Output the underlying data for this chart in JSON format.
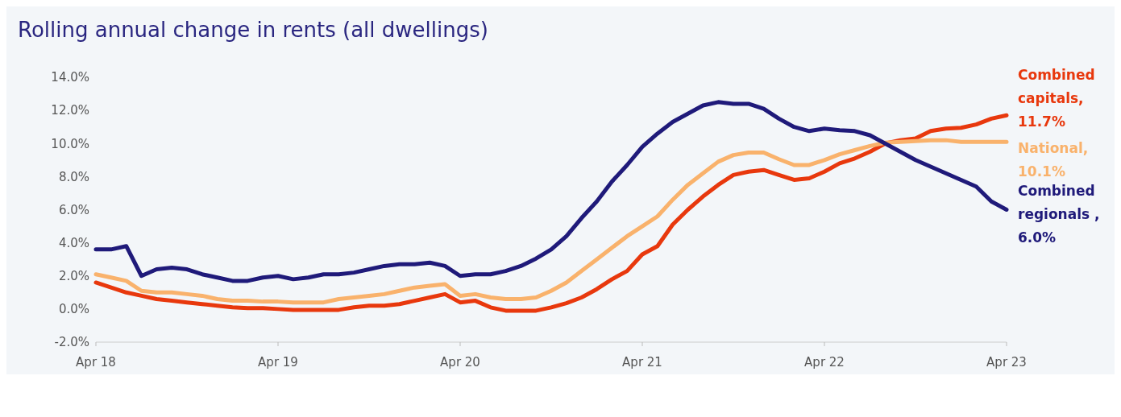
{
  "chart_data": {
    "type": "line",
    "title": "Rolling annual change in rents (all dwellings)",
    "categories": [
      "Apr 18",
      null,
      null,
      null,
      null,
      null,
      null,
      null,
      null,
      null,
      null,
      null,
      "Apr 19",
      null,
      null,
      null,
      null,
      null,
      null,
      null,
      null,
      null,
      null,
      null,
      "Apr 20",
      null,
      null,
      null,
      null,
      null,
      null,
      null,
      null,
      null,
      null,
      null,
      "Apr 21",
      null,
      null,
      null,
      null,
      null,
      null,
      null,
      null,
      null,
      null,
      null,
      "Apr 22",
      null,
      null,
      null,
      null,
      null,
      null,
      null,
      null,
      null,
      null,
      null,
      "Apr 23"
    ],
    "series": [
      {
        "name": "Combined capitals,",
        "color": "#e8380d",
        "values": [
          1.6,
          1.3,
          1.0,
          0.8,
          0.6,
          0.5,
          0.4,
          0.3,
          0.2,
          0.1,
          0.05,
          0.05,
          0.0,
          -0.05,
          -0.05,
          -0.05,
          -0.05,
          0.1,
          0.2,
          0.2,
          0.3,
          0.5,
          0.7,
          0.9,
          0.4,
          0.5,
          0.1,
          -0.1,
          -0.1,
          -0.1,
          0.1,
          0.35,
          0.7,
          1.2,
          1.8,
          2.3,
          3.3,
          3.8,
          5.1,
          6.0,
          6.8,
          7.5,
          8.1,
          8.3,
          8.4,
          8.1,
          7.8,
          7.9,
          8.3,
          8.8,
          9.1,
          9.5,
          10.0,
          10.2,
          10.3,
          10.75,
          10.9,
          10.95,
          11.15,
          11.5,
          11.7
        ],
        "value_labels": [
          null,
          null,
          null,
          null,
          null,
          null,
          null,
          null,
          null,
          null,
          null,
          null,
          null,
          null,
          null,
          null,
          null,
          null,
          null,
          null,
          null,
          null,
          null,
          null,
          null,
          null,
          null,
          null,
          null,
          null,
          null,
          null,
          null,
          null,
          null,
          null,
          null,
          null,
          null,
          null,
          null,
          null,
          null,
          null,
          null,
          null,
          null,
          null,
          null,
          null,
          null,
          null,
          null,
          null,
          null,
          null,
          null,
          null,
          null,
          null,
          "11.7%"
        ]
      },
      {
        "name": "National,",
        "color": "#f9b26c",
        "values": [
          2.1,
          1.9,
          1.7,
          1.1,
          1.0,
          1.0,
          0.9,
          0.8,
          0.6,
          0.5,
          0.5,
          0.45,
          0.45,
          0.4,
          0.4,
          0.4,
          0.6,
          0.7,
          0.8,
          0.9,
          1.1,
          1.3,
          1.4,
          1.5,
          0.8,
          0.9,
          0.7,
          0.6,
          0.6,
          0.7,
          1.1,
          1.6,
          2.3,
          3.0,
          3.7,
          4.4,
          5.0,
          5.6,
          6.6,
          7.5,
          8.2,
          8.9,
          9.3,
          9.45,
          9.45,
          9.05,
          8.7,
          8.7,
          9.0,
          9.35,
          9.6,
          9.85,
          10.05,
          10.1,
          10.15,
          10.2,
          10.2,
          10.1,
          10.1,
          10.1,
          10.1
        ],
        "value_labels": [
          null,
          null,
          null,
          null,
          null,
          null,
          null,
          null,
          null,
          null,
          null,
          null,
          null,
          null,
          null,
          null,
          null,
          null,
          null,
          null,
          null,
          null,
          null,
          null,
          null,
          null,
          null,
          null,
          null,
          null,
          null,
          null,
          null,
          null,
          null,
          null,
          null,
          null,
          null,
          null,
          null,
          null,
          null,
          null,
          null,
          null,
          null,
          null,
          null,
          null,
          null,
          null,
          null,
          null,
          null,
          null,
          null,
          null,
          null,
          null,
          "10.1%"
        ]
      },
      {
        "name": "Combined regionals ,",
        "color": "#1f1a7a",
        "values": [
          3.6,
          3.6,
          3.8,
          2.0,
          2.4,
          2.5,
          2.4,
          2.1,
          1.9,
          1.7,
          1.7,
          1.9,
          2.0,
          1.8,
          1.9,
          2.1,
          2.1,
          2.2,
          2.4,
          2.6,
          2.7,
          2.7,
          2.8,
          2.6,
          2.0,
          2.1,
          2.1,
          2.3,
          2.6,
          3.05,
          3.6,
          4.4,
          5.5,
          6.5,
          7.7,
          8.7,
          9.8,
          10.6,
          11.3,
          11.8,
          12.3,
          12.5,
          12.4,
          12.4,
          12.1,
          11.5,
          11.0,
          10.75,
          10.9,
          10.8,
          10.75,
          10.5,
          10.0,
          9.5,
          9.0,
          8.6,
          8.2,
          7.8,
          7.4,
          6.5,
          6.0
        ],
        "value_labels": [
          null,
          null,
          null,
          null,
          null,
          null,
          null,
          null,
          null,
          null,
          null,
          null,
          null,
          null,
          null,
          null,
          null,
          null,
          null,
          null,
          null,
          null,
          null,
          null,
          null,
          null,
          null,
          null,
          null,
          null,
          null,
          null,
          null,
          null,
          null,
          null,
          null,
          null,
          null,
          null,
          null,
          null,
          null,
          null,
          null,
          null,
          null,
          null,
          null,
          null,
          null,
          null,
          null,
          null,
          null,
          null,
          null,
          null,
          null,
          null,
          "6.0%"
        ]
      }
    ],
    "ylim": [
      -2,
      14
    ],
    "yticks": [
      {
        "value": -2,
        "label": "-2.0%"
      },
      {
        "value": 0,
        "label": "0.0%"
      },
      {
        "value": 2,
        "label": "2.0%"
      },
      {
        "value": 4,
        "label": "4.0%"
      },
      {
        "value": 6,
        "label": "6.0%"
      },
      {
        "value": 8,
        "label": "8.0%"
      },
      {
        "value": 10,
        "label": "10.0%"
      },
      {
        "value": 12,
        "label": "12.0%"
      },
      {
        "value": 14,
        "label": "14.0%"
      }
    ],
    "grid": false,
    "legend": false,
    "marker": "none",
    "line_style": "solid"
  }
}
